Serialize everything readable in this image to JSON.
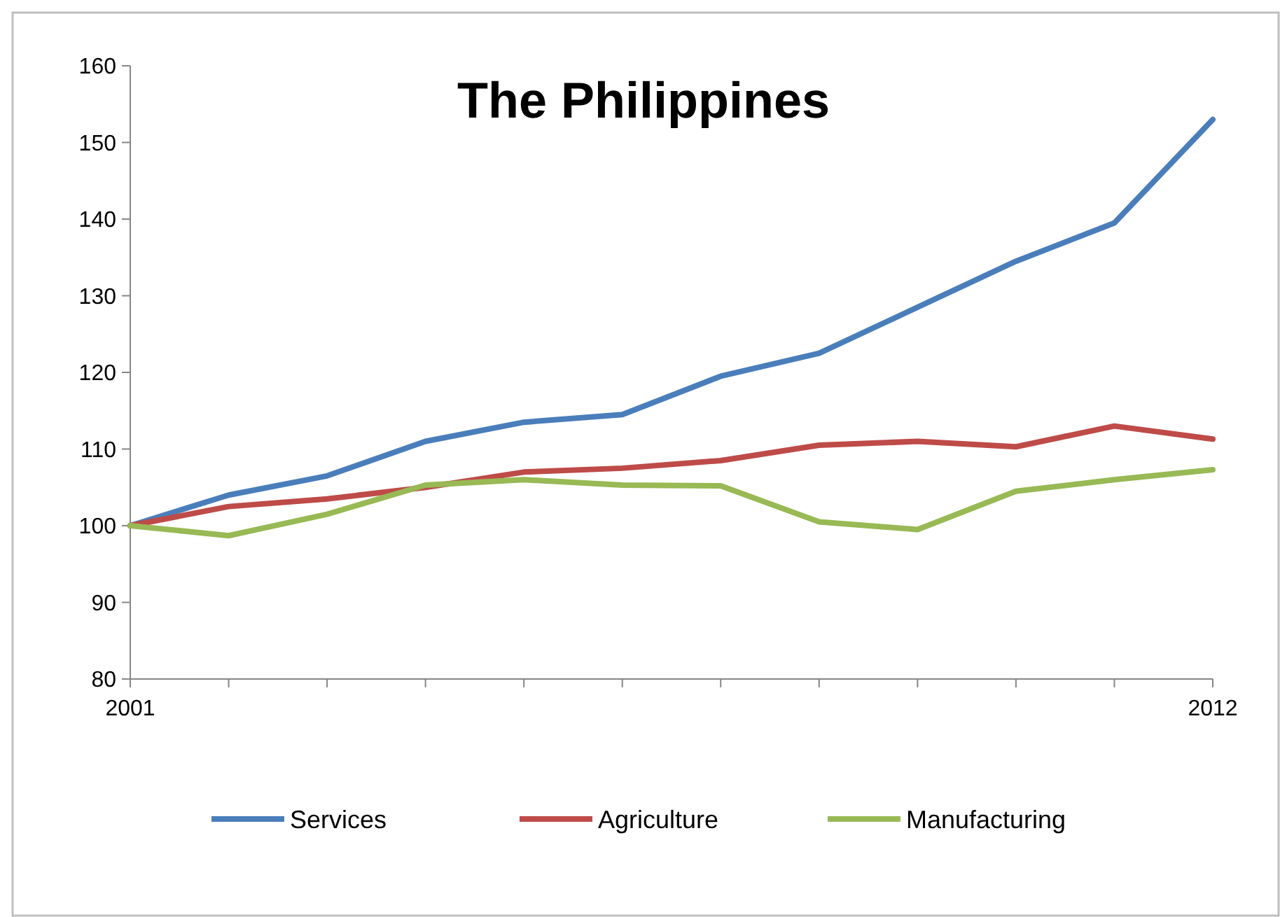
{
  "chart_data": {
    "type": "line",
    "title": "The Philippines",
    "x": [
      2001,
      2002,
      2003,
      2004,
      2005,
      2006,
      2007,
      2008,
      2009,
      2010,
      2011,
      2012
    ],
    "xlim": [
      2001,
      2012
    ],
    "xticks": [
      2001,
      {
        "value": 2002,
        "label": null
      },
      {
        "value": 2003,
        "label": null
      },
      {
        "value": 2004,
        "label": null
      },
      {
        "value": 2005,
        "label": null
      },
      {
        "value": 2006,
        "label": null
      },
      {
        "value": 2007,
        "label": null
      },
      {
        "value": 2008,
        "label": null
      },
      {
        "value": 2009,
        "label": null
      },
      {
        "value": 2010,
        "label": null
      },
      {
        "value": 2011,
        "label": null
      },
      2012
    ],
    "ylim": [
      80,
      160
    ],
    "yticks": [
      80,
      90,
      100,
      110,
      120,
      130,
      140,
      150,
      160
    ],
    "grid": false,
    "legend": "bottom",
    "marker": "none",
    "line_style": "solid",
    "series": [
      {
        "name": "Services",
        "color": "#4a7ebb",
        "values": [
          100,
          104,
          106.5,
          111,
          113.5,
          114.5,
          119.5,
          122.5,
          128.5,
          134.5,
          139.5,
          153
        ]
      },
      {
        "name": "Agriculture",
        "color": "#be4b48",
        "values": [
          100,
          102.5,
          103.5,
          105,
          107,
          107.5,
          108.5,
          110.5,
          111,
          110.3,
          113,
          111.3
        ]
      },
      {
        "name": "Manufacturing",
        "color": "#98b954",
        "values": [
          100,
          98.7,
          101.5,
          105.3,
          106,
          105.3,
          105.2,
          100.5,
          99.5,
          104.5,
          106,
          107.3
        ]
      }
    ]
  }
}
